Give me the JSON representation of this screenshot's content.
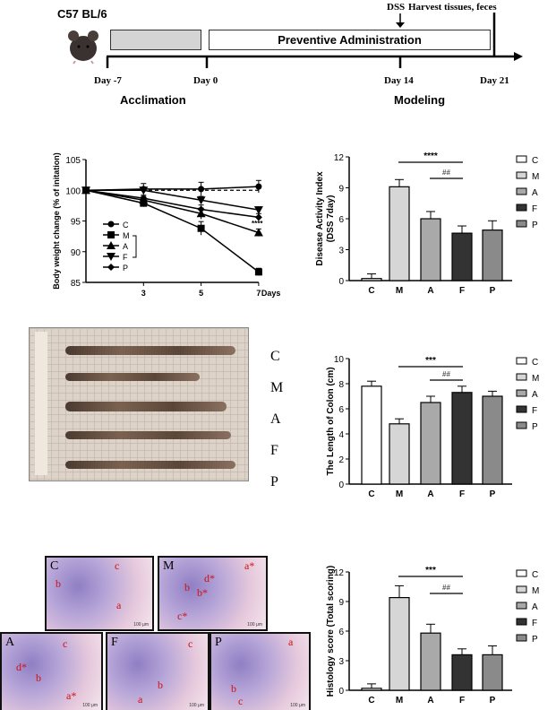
{
  "timeline": {
    "strain": "C57 BL/6",
    "phase_box": "Preventive Administration",
    "days": [
      "Day -7",
      "Day 0",
      "Day 14",
      "Day 21"
    ],
    "dss": "DSS",
    "harvest": "Harvest tissues, feces",
    "phase_acclimation": "Acclimation",
    "phase_modeling": "Modeling"
  },
  "colon_photo": {
    "labels": [
      "C",
      "M",
      "A",
      "F",
      "P"
    ]
  },
  "histology_panels": [
    {
      "label": "C",
      "marks": [
        "b",
        "c",
        "a"
      ]
    },
    {
      "label": "M",
      "marks": [
        "a*",
        "d*",
        "b*",
        "b",
        "c*"
      ]
    },
    {
      "label": "A",
      "marks": [
        "c",
        "d*",
        "b",
        "a*"
      ]
    },
    {
      "label": "F",
      "marks": [
        "c",
        "b",
        "a"
      ]
    },
    {
      "label": "P",
      "marks": [
        "a",
        "b",
        "c"
      ]
    }
  ],
  "scale_bar": "100 μm",
  "chart_data": [
    {
      "type": "line",
      "ylabel": "Body weight change (% of initation)",
      "xlabel": "Days",
      "x": [
        0,
        3,
        5,
        7
      ],
      "xticklabels": [
        "",
        "3",
        "5",
        "7"
      ],
      "ylim": [
        85,
        105
      ],
      "yticks": [
        85,
        90,
        95,
        100,
        105
      ],
      "reference_line": 100,
      "annotation": "****",
      "series": [
        {
          "name": "C",
          "marker": "circle",
          "values": [
            100,
            100.2,
            100.2,
            100.6
          ],
          "errors": [
            0,
            0.9,
            1.1,
            1.0
          ]
        },
        {
          "name": "M",
          "marker": "square",
          "values": [
            100,
            97.9,
            93.8,
            86.7
          ],
          "errors": [
            0,
            0.6,
            1.1,
            0.6
          ]
        },
        {
          "name": "A",
          "marker": "triangle-up",
          "values": [
            100,
            98.4,
            96.2,
            93.1
          ],
          "errors": [
            0,
            0.6,
            0.9,
            0.6
          ]
        },
        {
          "name": "F",
          "marker": "triangle-down",
          "values": [
            100,
            100.0,
            98.4,
            96.8
          ],
          "errors": [
            0,
            0.5,
            0.6,
            0.5
          ]
        },
        {
          "name": "P",
          "marker": "diamond",
          "values": [
            100,
            98.7,
            96.9,
            95.6
          ],
          "errors": [
            0,
            0.5,
            0.7,
            0.6
          ]
        }
      ],
      "legend": "bottom-left"
    },
    {
      "type": "bar",
      "ylabel": "Disease Activity Index (DSS 7day)",
      "categories": [
        "C",
        "M",
        "A",
        "F",
        "P"
      ],
      "values": [
        0.2,
        9.1,
        6.0,
        4.6,
        4.9
      ],
      "errors": [
        0.45,
        0.7,
        0.7,
        0.7,
        0.9
      ],
      "ylim": [
        0,
        12
      ],
      "yticks": [
        0,
        3,
        6,
        9,
        12
      ],
      "sig": [
        {
          "from": "M",
          "to": "F",
          "label": "****"
        },
        {
          "from": "A",
          "to": "F",
          "label": "##"
        }
      ],
      "legend": "right"
    },
    {
      "type": "bar",
      "ylabel": "The Length of Colon (cm)",
      "categories": [
        "C",
        "M",
        "A",
        "F",
        "P"
      ],
      "values": [
        7.8,
        4.8,
        6.5,
        7.3,
        7.0
      ],
      "errors": [
        0.4,
        0.4,
        0.5,
        0.5,
        0.4
      ],
      "ylim": [
        0,
        10
      ],
      "yticks": [
        0,
        2,
        4,
        6,
        8,
        10
      ],
      "sig": [
        {
          "from": "M",
          "to": "F",
          "label": "***"
        },
        {
          "from": "A",
          "to": "F",
          "label": "##"
        }
      ],
      "legend": "right"
    },
    {
      "type": "bar",
      "ylabel": "Histology score (Total scoring)",
      "categories": [
        "C",
        "M",
        "A",
        "F",
        "P"
      ],
      "values": [
        0.2,
        9.4,
        5.8,
        3.6,
        3.6
      ],
      "errors": [
        0.45,
        1.2,
        0.9,
        0.6,
        0.9
      ],
      "ylim": [
        0,
        12
      ],
      "yticks": [
        0,
        3,
        6,
        9,
        12
      ],
      "sig": [
        {
          "from": "M",
          "to": "F",
          "label": "***"
        },
        {
          "from": "A",
          "to": "F",
          "label": "##"
        }
      ],
      "legend": "right"
    }
  ],
  "colors": {
    "C": "#ffffff",
    "M": "#d6d6d6",
    "A": "#a9a9a9",
    "F": "#333333",
    "P": "#8a8a8a"
  }
}
